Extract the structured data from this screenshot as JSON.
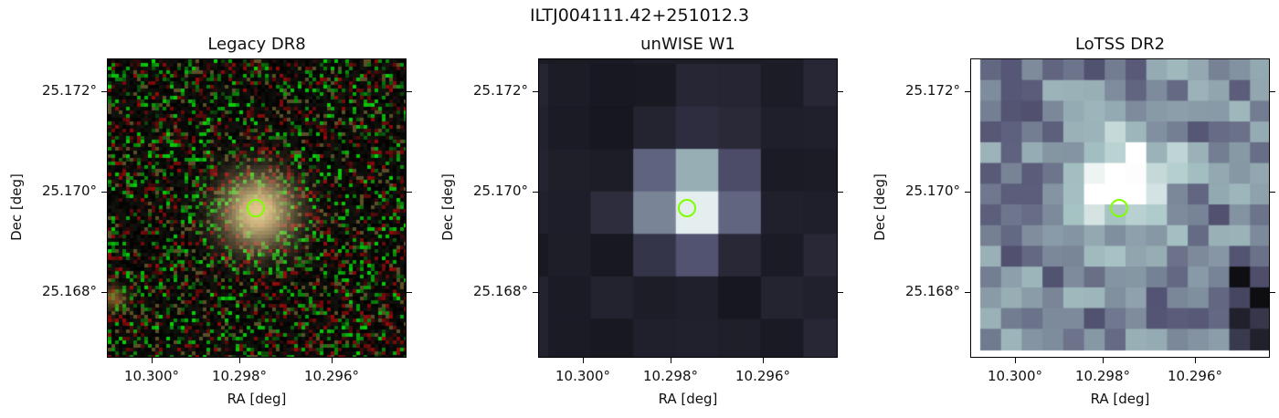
{
  "figure": {
    "title": "ILTJ004111.42+251012.3"
  },
  "panels": [
    {
      "title": "Legacy DR8",
      "xlabel": "RA [deg]",
      "ylabel": "Dec [deg]",
      "xticks": [
        "10.300°",
        "10.298°",
        "10.296°"
      ],
      "yticks": [
        "25.172°",
        "25.170°",
        "25.168°"
      ],
      "image_kind": "rgb-noise-with-source"
    },
    {
      "title": "unWISE W1",
      "xlabel": "RA [deg]",
      "ylabel": "Dec [deg]",
      "xticks": [
        "10.300°",
        "10.298°",
        "10.296°"
      ],
      "yticks": [
        "25.172°",
        "25.170°",
        "25.168°"
      ],
      "image_kind": "bone-colormap-coarse"
    },
    {
      "title": "LoTSS DR2",
      "xlabel": "RA [deg]",
      "ylabel": "Dec [deg]",
      "xticks": [
        "10.300°",
        "10.298°",
        "10.296°"
      ],
      "yticks": [
        "25.172°",
        "25.170°",
        "25.168°"
      ],
      "image_kind": "bone-colormap-radio"
    }
  ],
  "colors": {
    "marker": "#7fff00",
    "axes": "#000000"
  }
}
